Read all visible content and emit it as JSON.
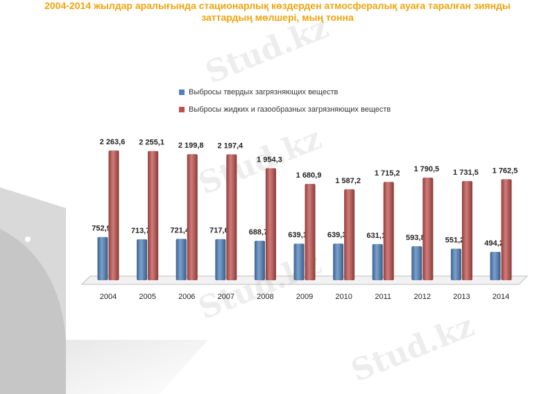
{
  "chart_data": {
    "type": "bar",
    "title": "2004-2014 жылдар аралығында стационарлық көздерден атмосфералық ауаға таралған зиянды заттардың мөлшері, мың тонна",
    "categories": [
      "2004",
      "2005",
      "2006",
      "2007",
      "2008",
      "2009",
      "2010",
      "2011",
      "2012",
      "2013",
      "2014"
    ],
    "series": [
      {
        "name": "Выбросы твердых загрязняющих веществ",
        "color": "#4f81bd",
        "values": [
          752.9,
          713.7,
          721.4,
          717.6,
          688.7,
          639.1,
          639.3,
          631.1,
          593.8,
          551.2,
          494.2
        ],
        "value_labels": [
          "752,9",
          "713,7",
          "721,4",
          "717,6",
          "688,7",
          "639,1",
          "639,3",
          "631,1",
          "593,8",
          "551,2",
          "494,2"
        ]
      },
      {
        "name": "Выбросы жидких и газообразных загрязняющих веществ",
        "color": "#c0504d",
        "values": [
          2263.6,
          2255.1,
          2199.8,
          2197.4,
          1954.3,
          1680.9,
          1587.2,
          1715.2,
          1790.5,
          1731.5,
          1762.5
        ],
        "value_labels": [
          "2 263,6",
          "2 255,1",
          "2 199,8",
          "2 197,4",
          "1 954,3",
          "1 680,9",
          "1 587,2",
          "1 715,2",
          "1 790,5",
          "1 731,5",
          "1 762,5"
        ]
      }
    ],
    "watermark": "Stud.kz"
  }
}
